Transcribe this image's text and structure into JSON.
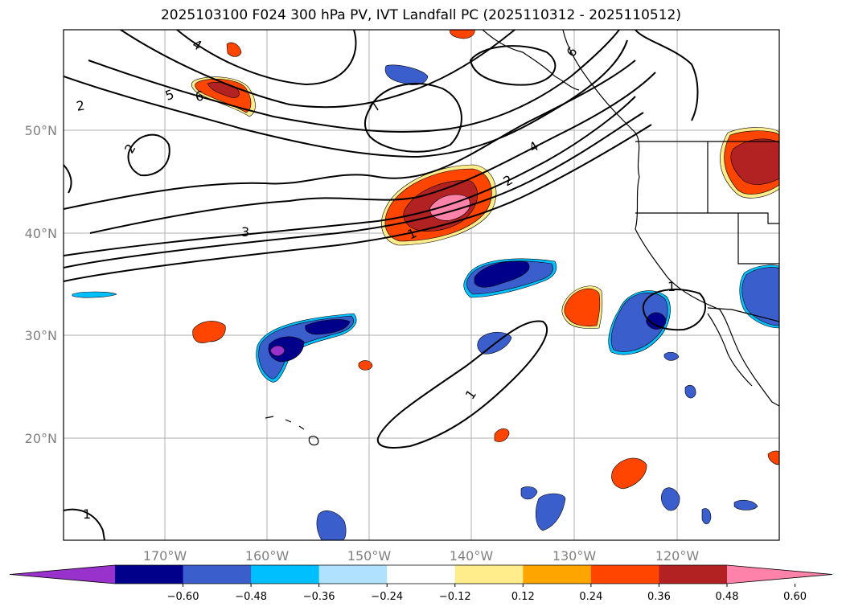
{
  "title": "2025103100 F024 300 hPa PV, IVT Landfall PC (2025110312 - 2025110512)",
  "latitude_labels": [
    "50°N",
    "40°N",
    "30°N",
    "20°N"
  ],
  "longitude_labels": [
    "170°W",
    "160°W",
    "150°W",
    "140°W",
    "130°W",
    "120°W"
  ],
  "contour_labels": [
    "4",
    "5",
    "6",
    "2",
    "2",
    "7",
    "6",
    "4",
    "2",
    "3",
    "1",
    "1",
    "1",
    "1"
  ],
  "colorbar": {
    "tick_labels": [
      "−0.60",
      "−0.48",
      "−0.36",
      "−0.24",
      "−0.12",
      "0.12",
      "0.24",
      "0.36",
      "0.48",
      "0.60"
    ],
    "colors": [
      "#9932cc",
      "#00008b",
      "#3a5fcd",
      "#00bfff",
      "#b0e2ff",
      "#ffffff",
      "#ffec8b",
      "#ffa500",
      "#ff4500",
      "#b22222",
      "#ff82ab"
    ]
  },
  "fill_colors": {
    "neg_strong": "#00008b",
    "neg_mid": "#3a5fcd",
    "neg_light": "#00bfff",
    "neg_extreme": "#9932cc",
    "pos_light": "#ffec8b",
    "pos_mid": "#ffa500",
    "pos_strong": "#ff4500",
    "pos_dark": "#b22222",
    "pos_extreme": "#ff82ab"
  }
}
